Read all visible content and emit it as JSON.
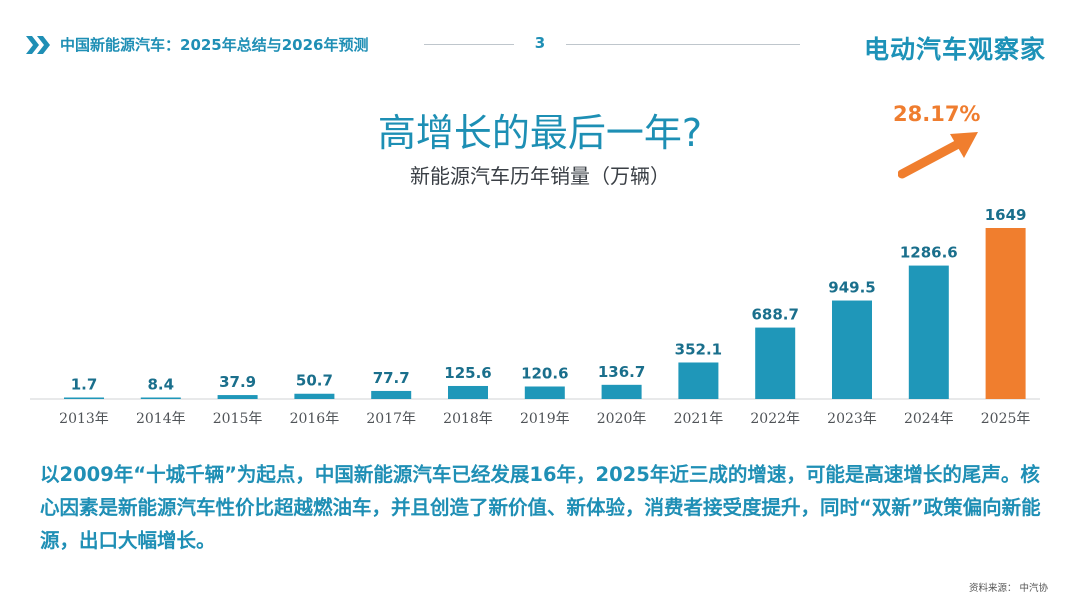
{
  "header": {
    "title": "中国新能源汽车：2025年总结与2026年预测",
    "page_number": "3",
    "brand": "电动汽车观察家",
    "colors": {
      "accent": "#1f8fb5",
      "rule": "#bfc6cc"
    }
  },
  "main_title": "高增长的最后一年?",
  "growth_callout": "28.17%",
  "chart_data": {
    "type": "bar",
    "title": "新能源汽车历年销量（万辆）",
    "categories": [
      "2013年",
      "2014年",
      "2015年",
      "2016年",
      "2017年",
      "2018年",
      "2019年",
      "2020年",
      "2021年",
      "2022年",
      "2023年",
      "2024年",
      "2025年"
    ],
    "values": [
      1.7,
      8.4,
      37.9,
      50.7,
      77.7,
      125.6,
      120.6,
      136.7,
      352.1,
      688.7,
      949.5,
      1286.6,
      1649
    ],
    "value_labels": [
      "1.7",
      "8.4",
      "37.9",
      "50.7",
      "77.7",
      "125.6",
      "120.6",
      "136.7",
      "352.1",
      "688.7",
      "949.5",
      "1286.6",
      "1649"
    ],
    "highlight_index": 12,
    "colors": {
      "bar": "#1f97b9",
      "highlight": "#f07e2e"
    },
    "grid": false,
    "legend": "none"
  },
  "body_text": "以2009年“十城千辆”为起点，中国新能源汽车已经发展16年，2025年近三成的增速，可能是高速增长的尾声。核心因素是新能源汽车性价比超越燃油车，并且创造了新价值、新体验，消费者接受度提升，同时“双新”政策偏向新能源，出口大幅增长。",
  "source": {
    "label": "资料来源：",
    "value": "中汽协"
  }
}
